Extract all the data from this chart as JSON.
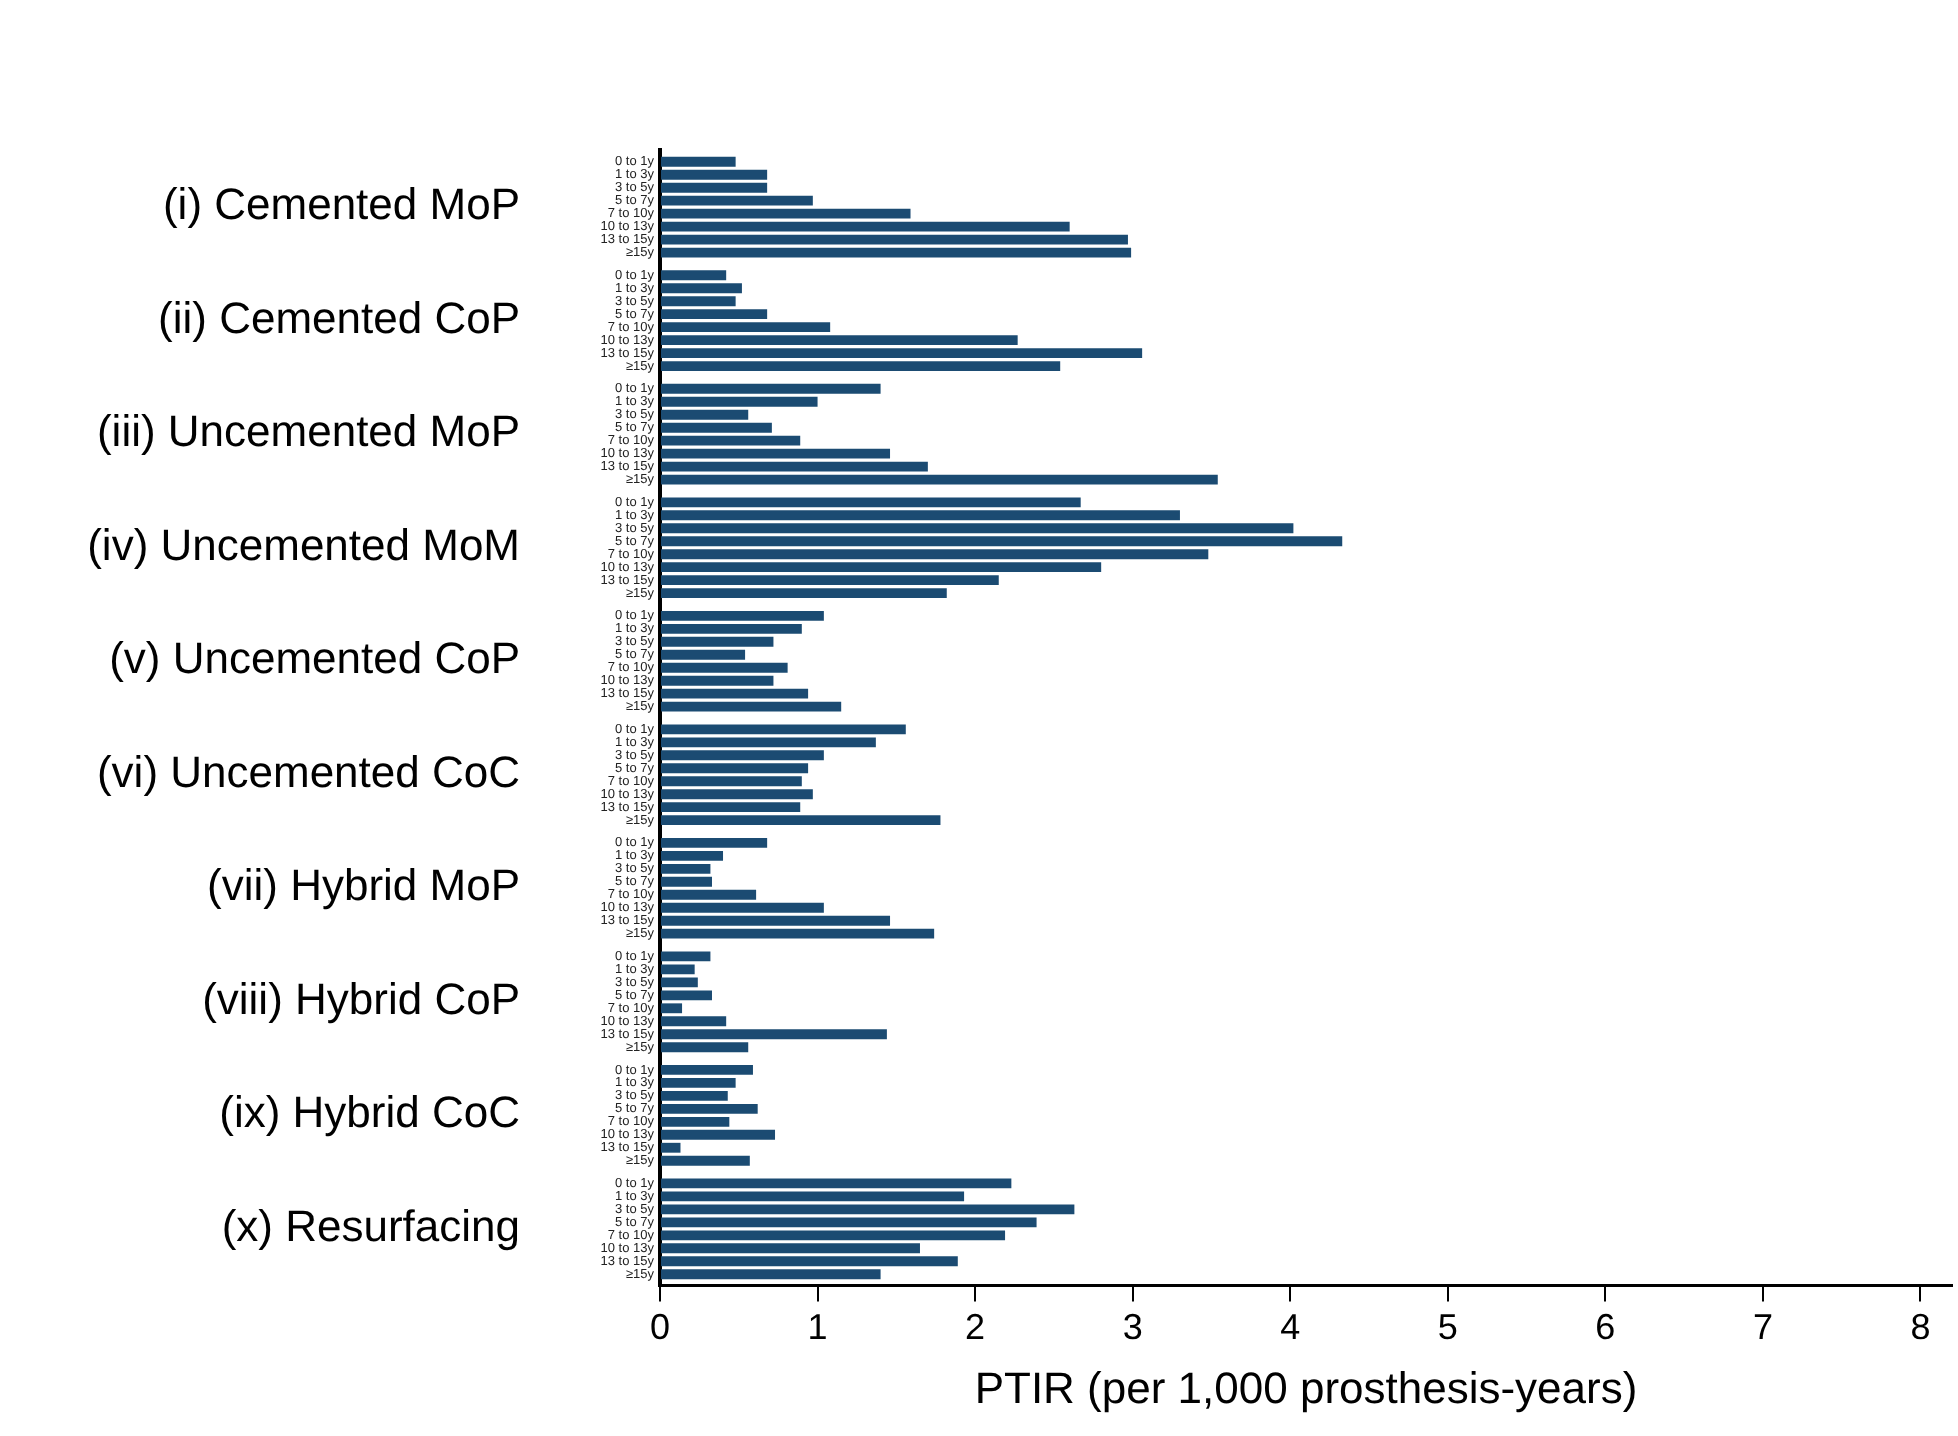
{
  "chart_data": {
    "type": "bar",
    "orientation": "horizontal",
    "xlabel": "PTIR (per 1,000 prosthesis-years)",
    "xlim": [
      0,
      8.2
    ],
    "xticks": [
      0,
      1,
      2,
      3,
      4,
      5,
      6,
      7,
      8
    ],
    "categories": [
      "(i) Cemented MoP",
      "(ii) Cemented CoP",
      "(iii) Uncemented MoP",
      "(iv) Uncemented MoM",
      "(v) Uncemented CoP",
      "(vi) Uncemented CoC",
      "(vii) Hybrid MoP",
      "(viii) Hybrid CoP",
      "(ix) Hybrid CoC",
      "(x) Resurfacing"
    ],
    "series": [
      {
        "name": "0 to 1y",
        "color": "#1b4b72",
        "values": [
          0.48,
          0.42,
          1.4,
          2.67,
          1.04,
          1.56,
          0.68,
          0.32,
          0.59,
          2.23
        ]
      },
      {
        "name": "1 to 3y",
        "color": "#1b4b72",
        "values": [
          0.68,
          0.52,
          1.0,
          3.3,
          0.9,
          1.37,
          0.4,
          0.22,
          0.48,
          1.93
        ]
      },
      {
        "name": "3 to 5y",
        "color": "#1b4b72",
        "values": [
          0.68,
          0.48,
          0.56,
          4.02,
          0.72,
          1.04,
          0.32,
          0.24,
          0.43,
          2.63
        ]
      },
      {
        "name": "5 to 7y",
        "color": "#1b4b72",
        "values": [
          0.97,
          0.68,
          0.71,
          4.33,
          0.54,
          0.94,
          0.33,
          0.33,
          0.62,
          2.39
        ]
      },
      {
        "name": "7 to 10y",
        "color": "#1b4b72",
        "values": [
          1.59,
          1.08,
          0.89,
          3.48,
          0.81,
          0.9,
          0.61,
          0.14,
          0.44,
          2.19
        ]
      },
      {
        "name": "10 to 13y",
        "color": "#1b4b72",
        "values": [
          2.6,
          2.27,
          1.46,
          2.8,
          0.72,
          0.97,
          1.04,
          0.42,
          0.73,
          1.65
        ]
      },
      {
        "name": "13 to 15y",
        "color": "#1b4b72",
        "values": [
          2.97,
          3.06,
          1.7,
          2.15,
          0.94,
          0.89,
          1.46,
          1.44,
          0.13,
          1.89
        ]
      },
      {
        "name": "≥15y",
        "color": "#1b4b72",
        "values": [
          2.99,
          2.54,
          3.54,
          1.82,
          1.15,
          1.78,
          1.74,
          0.56,
          0.57,
          1.4
        ]
      }
    ]
  }
}
